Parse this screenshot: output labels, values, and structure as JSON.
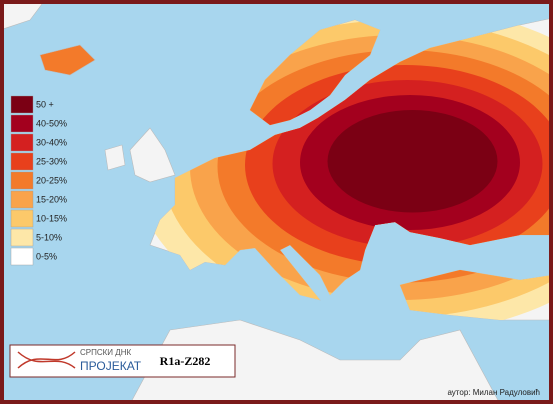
{
  "legend": {
    "items": [
      {
        "label": "50 +",
        "color": "#7b0014"
      },
      {
        "label": "40-50%",
        "color": "#a3001e"
      },
      {
        "label": "30-40%",
        "color": "#d42020"
      },
      {
        "label": "25-30%",
        "color": "#e8401c"
      },
      {
        "label": "20-25%",
        "color": "#f37a2a"
      },
      {
        "label": "15-20%",
        "color": "#f9a34b"
      },
      {
        "label": "10-15%",
        "color": "#fcc96a"
      },
      {
        "label": "5-10%",
        "color": "#fde7a8"
      },
      {
        "label": "0-5%",
        "color": "#ffffff"
      }
    ]
  },
  "logo": {
    "line1": "СРПСКИ ДНК",
    "line2": "ПРОЈЕКАТ"
  },
  "title": "R1a-Z282",
  "author": "аутор: Милан Радуловић"
}
